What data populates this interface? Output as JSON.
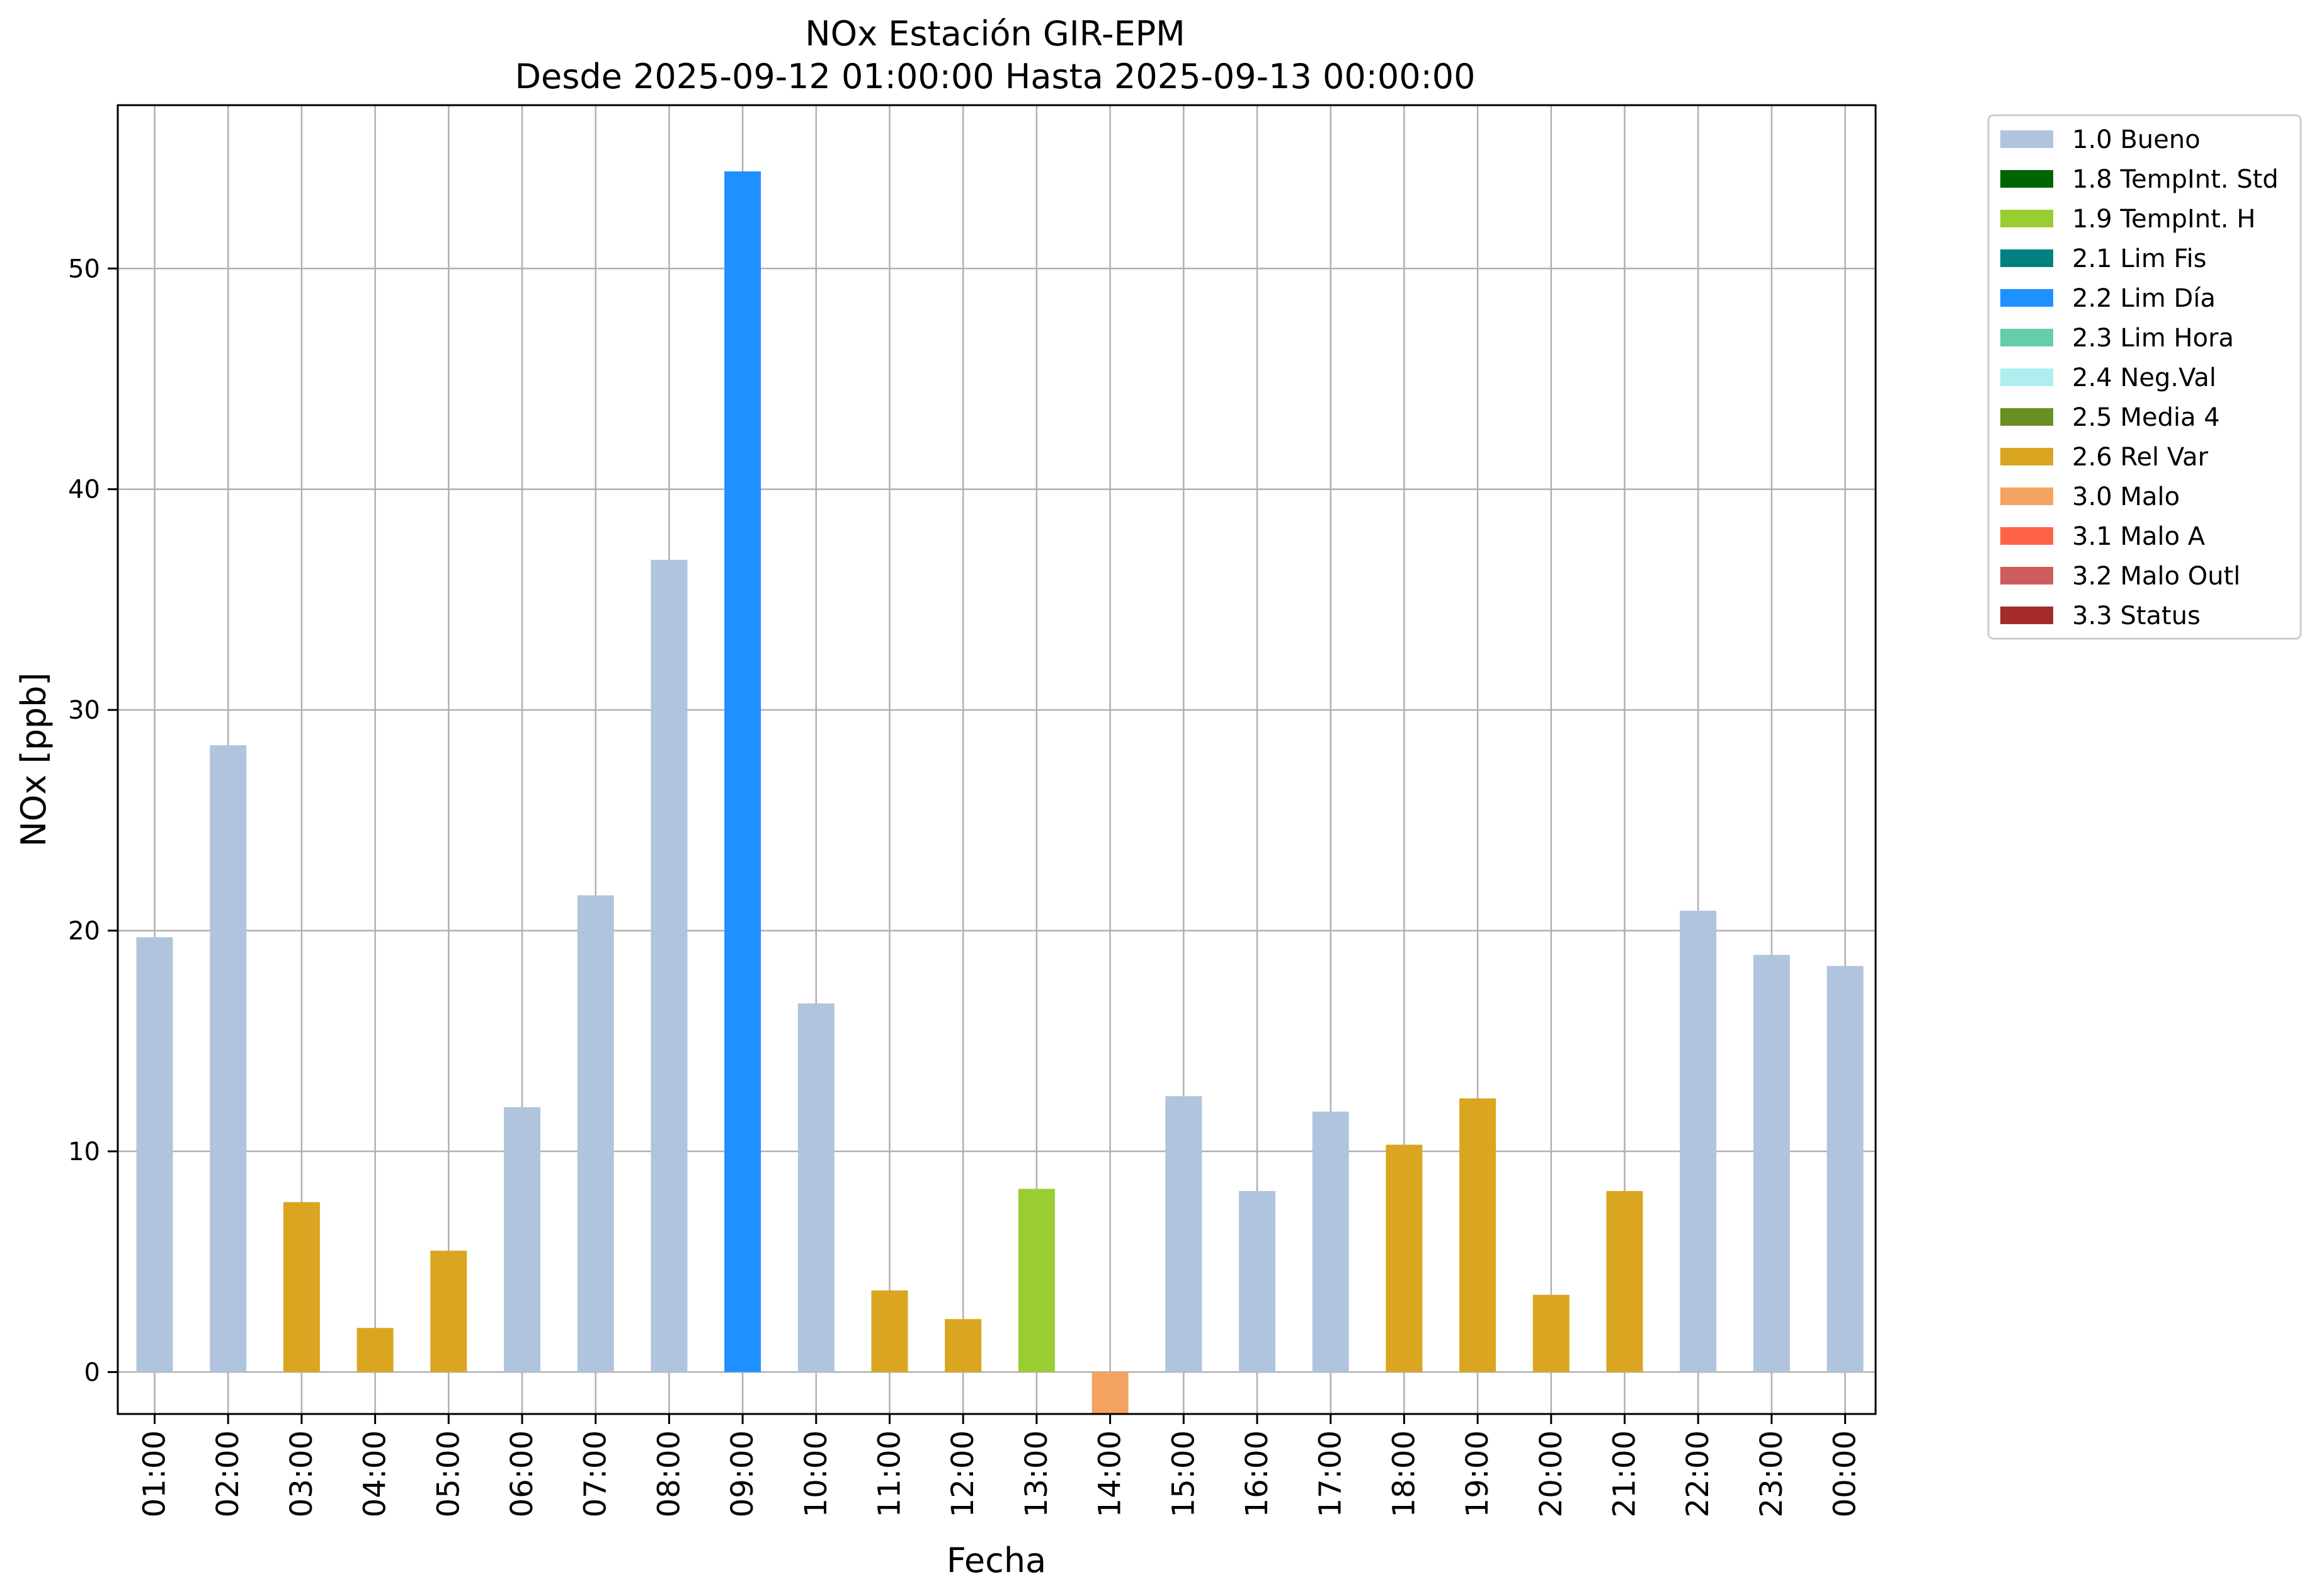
{
  "chart_data": {
    "type": "bar",
    "title": "NOx Estación GIR-EPM",
    "subtitle": "Desde 2025-09-12 01:00:00 Hasta 2025-09-13 00:00:00",
    "xlabel": "Fecha",
    "ylabel": "NOx [ppb]",
    "ylim": [
      -1.9,
      57.4
    ],
    "yticks": [
      "0",
      "10",
      "20",
      "30",
      "40",
      "50"
    ],
    "grid": true,
    "legend_position": "outside-top-right",
    "categories": [
      "01:00",
      "02:00",
      "03:00",
      "04:00",
      "05:00",
      "06:00",
      "07:00",
      "08:00",
      "09:00",
      "10:00",
      "11:00",
      "12:00",
      "13:00",
      "14:00",
      "15:00",
      "16:00",
      "17:00",
      "18:00",
      "19:00",
      "20:00",
      "21:00",
      "22:00",
      "23:00",
      "00:00"
    ],
    "values": [
      19.7,
      28.4,
      7.7,
      2.0,
      5.5,
      12.0,
      21.6,
      36.8,
      54.4,
      16.7,
      3.7,
      2.4,
      8.3,
      -1.9,
      12.5,
      8.2,
      11.8,
      10.3,
      12.4,
      3.5,
      8.2,
      20.9,
      18.9,
      18.4
    ],
    "flags": [
      "1.0 Bueno",
      "1.0 Bueno",
      "2.6 Rel Var",
      "2.6 Rel Var",
      "2.6 Rel Var",
      "1.0 Bueno",
      "1.0 Bueno",
      "1.0 Bueno",
      "2.2 Lim Día",
      "1.0 Bueno",
      "2.6 Rel Var",
      "2.6 Rel Var",
      "1.9 TempInt. H",
      "3.0 Malo",
      "1.0 Bueno",
      "1.0 Bueno",
      "1.0 Bueno",
      "2.6 Rel Var",
      "2.6 Rel Var",
      "2.6 Rel Var",
      "2.6 Rel Var",
      "1.0 Bueno",
      "1.0 Bueno",
      "1.0 Bueno"
    ],
    "legend": [
      {
        "label": "1.0 Bueno",
        "color": "#b0c4de"
      },
      {
        "label": "1.8 TempInt. Std",
        "color": "#006400"
      },
      {
        "label": "1.9 TempInt. H",
        "color": "#9acd32"
      },
      {
        "label": "2.1 Lim Fis",
        "color": "#008080"
      },
      {
        "label": "2.2 Lim Día",
        "color": "#1e90ff"
      },
      {
        "label": "2.3 Lim Hora",
        "color": "#66cdaa"
      },
      {
        "label": "2.4 Neg.Val",
        "color": "#afeeee"
      },
      {
        "label": "2.5 Media 4",
        "color": "#6b8e23"
      },
      {
        "label": "2.6 Rel Var",
        "color": "#daa520"
      },
      {
        "label": "3.0 Malo",
        "color": "#f4a460"
      },
      {
        "label": "3.1 Malo A",
        "color": "#ff6347"
      },
      {
        "label": "3.2 Malo Outl",
        "color": "#cd5c5c"
      },
      {
        "label": "3.3 Status",
        "color": "#a52a2a"
      }
    ]
  }
}
